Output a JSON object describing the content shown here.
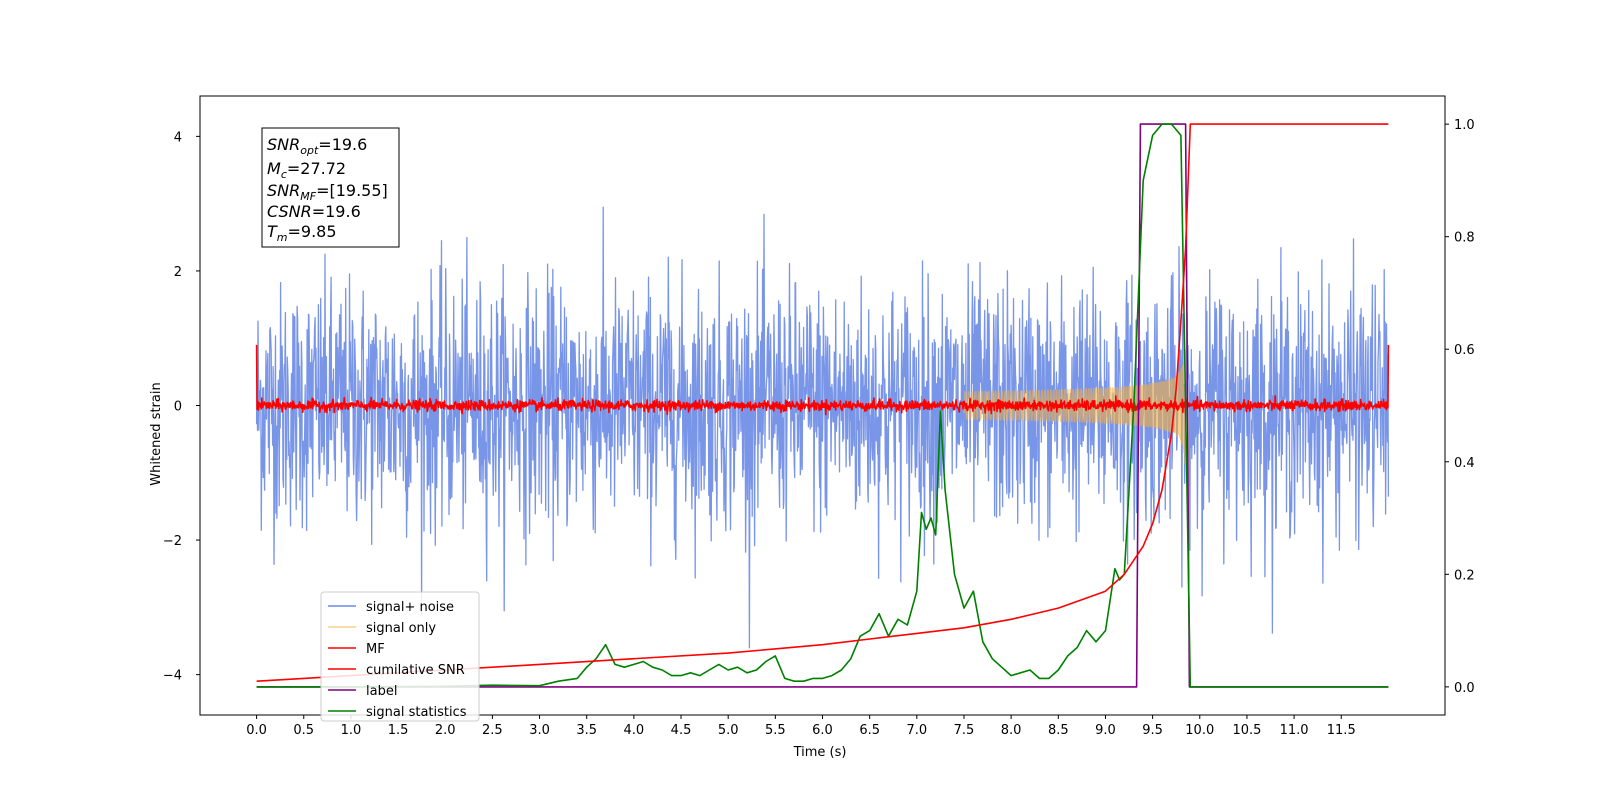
{
  "chart_data": {
    "type": "line",
    "xlabel": "Time (s)",
    "ylabel": "Whitened strain",
    "xlim": [
      -0.6,
      12.6
    ],
    "ylim": [
      -4.6,
      4.6
    ],
    "ylim_right": [
      -0.05,
      1.05
    ],
    "x_ticks": [
      "0.0",
      "0.5",
      "1.0",
      "1.5",
      "2.0",
      "2.5",
      "3.0",
      "3.5",
      "4.0",
      "4.5",
      "5.0",
      "5.5",
      "6.0",
      "6.5",
      "7.0",
      "7.5",
      "8.0",
      "8.5",
      "9.0",
      "9.5",
      "10.0",
      "10.5",
      "11.0",
      "11.5"
    ],
    "y_ticks_left": [
      "4",
      "2",
      "0",
      "−2",
      "−4"
    ],
    "y_ticks_right": [
      "1.0",
      "0.8",
      "0.6",
      "0.4",
      "0.2",
      "0.0"
    ],
    "grid": false,
    "legend_placement": "lower-left",
    "annotation": {
      "snr_opt": "=19.6",
      "mc": "=27.72",
      "snr_mf": "=[19.55]",
      "csnr": "=19.6",
      "tm": "=9.85"
    },
    "series": [
      {
        "name": "signal+ noise",
        "axis": "left",
        "color": "#6a8ae6",
        "kind": "noise",
        "amplitude_std": 0.9,
        "x_range": [
          0.0,
          12.0
        ]
      },
      {
        "name": "signal only",
        "axis": "left",
        "color": "#f5b041",
        "kind": "chirp",
        "merger_time": 9.85,
        "peak_amplitude": 1.0
      },
      {
        "name": "MF",
        "axis": "left",
        "color": "#ff0000",
        "kind": "noise",
        "amplitude_std": 0.04,
        "x_range": [
          0.0,
          12.0
        ]
      },
      {
        "name": "cumilative SNR",
        "axis": "right",
        "color": "#ff0000",
        "x": [
          0.0,
          0.5,
          1.0,
          2.0,
          3.0,
          4.0,
          5.0,
          6.0,
          6.5,
          7.0,
          7.5,
          8.0,
          8.5,
          9.0,
          9.2,
          9.4,
          9.5,
          9.6,
          9.7,
          9.75,
          9.8,
          9.85,
          9.9,
          12.0
        ],
        "values": [
          0.01,
          0.015,
          0.02,
          0.03,
          0.04,
          0.05,
          0.06,
          0.075,
          0.085,
          0.095,
          0.105,
          0.12,
          0.14,
          0.17,
          0.2,
          0.25,
          0.29,
          0.35,
          0.45,
          0.53,
          0.65,
          0.78,
          1.0,
          1.0
        ]
      },
      {
        "name": "label",
        "axis": "right",
        "color": "#800080",
        "x": [
          0.0,
          9.33,
          9.37,
          9.85,
          9.89,
          12.0
        ],
        "values": [
          0.0,
          0.0,
          1.0,
          1.0,
          0.0,
          0.0
        ]
      },
      {
        "name": "signal statistics",
        "axis": "right",
        "color": "#008000",
        "x": [
          0.0,
          1.0,
          2.0,
          2.5,
          3.0,
          3.2,
          3.4,
          3.5,
          3.6,
          3.7,
          3.8,
          3.9,
          4.0,
          4.1,
          4.2,
          4.3,
          4.4,
          4.5,
          4.6,
          4.7,
          4.8,
          4.9,
          5.0,
          5.1,
          5.2,
          5.3,
          5.4,
          5.5,
          5.6,
          5.7,
          5.8,
          5.9,
          6.0,
          6.1,
          6.2,
          6.3,
          6.4,
          6.5,
          6.6,
          6.7,
          6.8,
          6.9,
          7.0,
          7.05,
          7.1,
          7.15,
          7.2,
          7.25,
          7.3,
          7.4,
          7.5,
          7.6,
          7.7,
          7.8,
          7.9,
          8.0,
          8.1,
          8.2,
          8.3,
          8.4,
          8.5,
          8.6,
          8.7,
          8.8,
          8.9,
          9.0,
          9.1,
          9.15,
          9.2,
          9.3,
          9.4,
          9.5,
          9.6,
          9.7,
          9.8,
          9.85,
          9.9,
          10.0,
          11.0,
          12.0
        ],
        "values": [
          0.0,
          0.0,
          0.001,
          0.003,
          0.002,
          0.01,
          0.015,
          0.035,
          0.05,
          0.075,
          0.04,
          0.035,
          0.04,
          0.045,
          0.035,
          0.03,
          0.02,
          0.02,
          0.025,
          0.02,
          0.03,
          0.04,
          0.03,
          0.035,
          0.025,
          0.03,
          0.045,
          0.055,
          0.015,
          0.01,
          0.01,
          0.015,
          0.015,
          0.02,
          0.03,
          0.05,
          0.09,
          0.1,
          0.13,
          0.09,
          0.12,
          0.11,
          0.17,
          0.31,
          0.28,
          0.3,
          0.27,
          0.49,
          0.35,
          0.2,
          0.14,
          0.17,
          0.08,
          0.05,
          0.035,
          0.02,
          0.025,
          0.03,
          0.015,
          0.015,
          0.03,
          0.055,
          0.07,
          0.1,
          0.08,
          0.1,
          0.21,
          0.19,
          0.2,
          0.5,
          0.9,
          0.98,
          1.0,
          1.0,
          0.98,
          0.5,
          0.0,
          0.0,
          0.0,
          0.0
        ]
      }
    ]
  }
}
